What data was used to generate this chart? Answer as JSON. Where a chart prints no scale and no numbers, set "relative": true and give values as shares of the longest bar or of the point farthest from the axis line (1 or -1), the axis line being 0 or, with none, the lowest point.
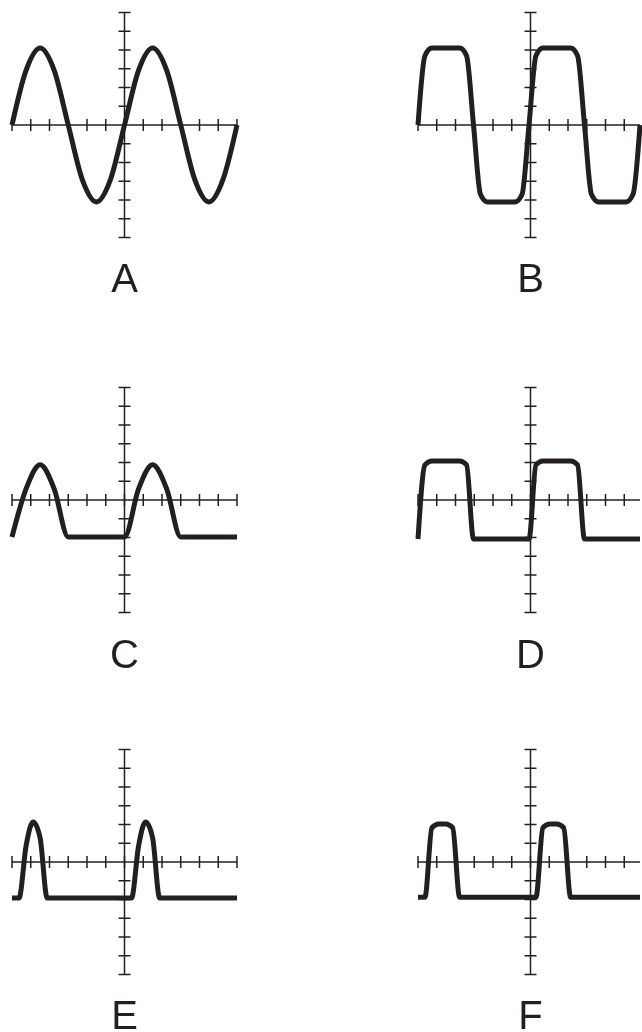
{
  "chart_data": [
    {
      "type": "line",
      "title": "A",
      "relative": true,
      "color": "#231f20",
      "categories": [
        null,
        null,
        null,
        null,
        null,
        null,
        null,
        null,
        null,
        null,
        null,
        null,
        null,
        null,
        null,
        null,
        null
      ],
      "values": [
        0,
        0.71,
        1,
        0.71,
        0,
        -0.71,
        -1,
        -0.71,
        0,
        0.71,
        1,
        0.71,
        0,
        -0.71,
        -1,
        -0.71,
        0
      ]
    },
    {
      "type": "line",
      "title": "B",
      "relative": true,
      "color": "#231f20",
      "categories": [
        null,
        null,
        null,
        null,
        null,
        null,
        null,
        null,
        null,
        null,
        null,
        null,
        null,
        null,
        null,
        null,
        null,
        null,
        null,
        null,
        null,
        null,
        null,
        null,
        null,
        null,
        null,
        null,
        null,
        null,
        null,
        null,
        null
      ],
      "values": [
        0,
        0.9,
        1,
        1,
        1,
        1,
        1,
        0.9,
        0,
        -0.9,
        -1,
        -1,
        -1,
        -1,
        -1,
        -0.9,
        0,
        0.9,
        1,
        1,
        1,
        1,
        1,
        0.9,
        0,
        -0.9,
        -1,
        -1,
        -1,
        -1,
        -1,
        -0.9,
        0
      ]
    },
    {
      "type": "line",
      "title": "C",
      "relative": true,
      "color": "#231f20",
      "categories": [
        null,
        null,
        null,
        null,
        null,
        null,
        null,
        null,
        null,
        null,
        null,
        null,
        null,
        null,
        null,
        null,
        null
      ],
      "values": [
        -1,
        0.3,
        0.95,
        0.3,
        -1,
        -1,
        -1,
        -1,
        -1,
        0.3,
        0.95,
        0.3,
        -1,
        -1,
        -1,
        -1,
        -1
      ]
    },
    {
      "type": "line",
      "title": "D",
      "relative": true,
      "color": "#231f20",
      "categories": [
        null,
        null,
        null,
        null,
        null,
        null,
        null,
        null,
        null,
        null,
        null,
        null,
        null,
        null,
        null,
        null,
        null,
        null,
        null,
        null,
        null,
        null,
        null,
        null,
        null,
        null,
        null,
        null,
        null,
        null,
        null,
        null,
        null
      ],
      "values": [
        -1,
        0.9,
        1,
        1,
        1,
        1,
        1,
        0.9,
        -1,
        -1,
        -1,
        -1,
        -1,
        -1,
        -1,
        -1,
        -1,
        0.9,
        1,
        1,
        1,
        1,
        1,
        0.9,
        -1,
        -1,
        -1,
        -1,
        -1,
        -1,
        -1,
        -1,
        -1
      ]
    },
    {
      "type": "line",
      "title": "E",
      "relative": true,
      "color": "#231f20",
      "categories": [
        null,
        null,
        null,
        null,
        null,
        null,
        null,
        null,
        null,
        null,
        null,
        null,
        null,
        null,
        null,
        null,
        null,
        null,
        null,
        null,
        null,
        null,
        null,
        null,
        null,
        null,
        null,
        null,
        null,
        null,
        null,
        null,
        null
      ],
      "values": [
        -0.9,
        -0.9,
        0.4,
        1,
        0.6,
        -0.9,
        -0.9,
        -0.9,
        -0.9,
        -0.9,
        -0.9,
        -0.9,
        -0.9,
        -0.9,
        -0.9,
        -0.9,
        -0.9,
        -0.9,
        0.4,
        1,
        0.6,
        -0.9,
        -0.9,
        -0.9,
        -0.9,
        -0.9,
        -0.9,
        -0.9,
        -0.9,
        -0.9,
        -0.9,
        -0.9,
        -0.9
      ]
    },
    {
      "type": "line",
      "title": "F",
      "relative": true,
      "color": "#231f20",
      "categories": [
        null,
        null,
        null,
        null,
        null,
        null,
        null,
        null,
        null,
        null,
        null,
        null,
        null,
        null,
        null,
        null,
        null,
        null,
        null,
        null,
        null,
        null,
        null,
        null,
        null,
        null,
        null,
        null,
        null,
        null,
        null,
        null,
        null
      ],
      "values": [
        -0.93,
        -0.93,
        0.9,
        1,
        1,
        0.9,
        -0.93,
        -0.93,
        -0.93,
        -0.93,
        -0.93,
        -0.93,
        -0.93,
        -0.93,
        -0.93,
        -0.93,
        -0.93,
        -0.93,
        0.9,
        1,
        1,
        0.9,
        -0.93,
        -0.93,
        -0.93,
        -0.93,
        -0.93,
        -0.93,
        -0.93,
        -0.93,
        -0.93,
        -0.93,
        -0.93
      ]
    }
  ]
}
